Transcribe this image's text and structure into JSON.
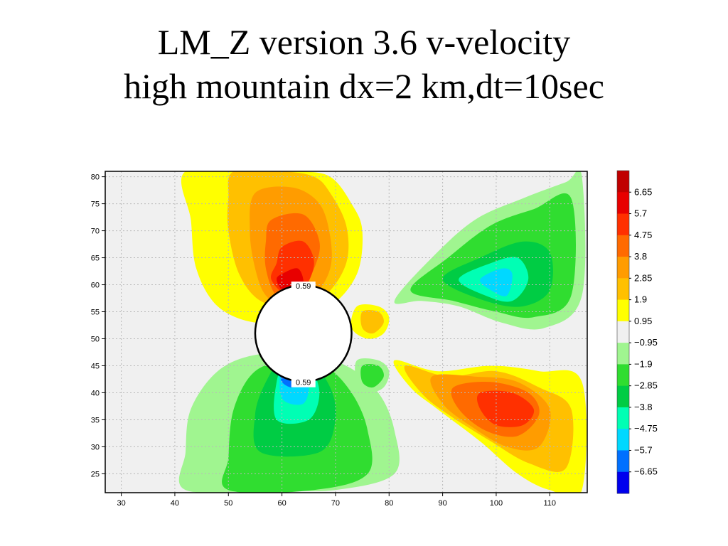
{
  "slide": {
    "title_line1": "LM_Z version 3.6 v-velocity",
    "title_line2": "high mountain dx=2 km,dt=10sec"
  },
  "chart_data": {
    "type": "heatmap",
    "title": "",
    "xlabel": "",
    "ylabel": "",
    "x_ticks": [
      30,
      40,
      50,
      60,
      70,
      80,
      90,
      100,
      110
    ],
    "xlim": [
      27,
      117
    ],
    "y_ticks": [
      25,
      30,
      35,
      40,
      45,
      50,
      55,
      60,
      65,
      70,
      75,
      80
    ],
    "y_tick_labels": [
      "25",
      "30",
      "35",
      "40",
      "45",
      "50",
      "55",
      "60",
      "65",
      "70",
      "75",
      "80"
    ],
    "ylim": [
      21.5,
      81
    ],
    "grid": true,
    "mountain": {
      "center": [
        64,
        51
      ],
      "radius_x": 9,
      "label_top": "0.59",
      "label_bottom": "0.59"
    },
    "colorbar": {
      "levels": [
        6.65,
        5.7,
        4.75,
        3.8,
        2.85,
        1.9,
        0.95,
        -0.95,
        -1.9,
        -2.85,
        -3.8,
        -4.75,
        -5.7,
        -6.65
      ],
      "level_labels": [
        "6.65",
        "5.7",
        "4.75",
        "3.8",
        "2.85",
        "1.9",
        "0.95",
        "−0.95",
        "−1.9",
        "−2.85",
        "−3.8",
        "−4.75",
        "−5.7",
        "−6.65"
      ],
      "colors": [
        "#c00000",
        "#e80000",
        "#ff3000",
        "#ff6a00",
        "#ff9c00",
        "#ffc000",
        "#ffff00",
        "#f0f0f0",
        "#a0f590",
        "#30dd30",
        "#00cc44",
        "#00ffb4",
        "#00d8ff",
        "#0070ff",
        "#0000ee"
      ]
    },
    "palette": {
      "neutral": "#f0f0f0",
      "pos": [
        "#ffff00",
        "#ffc000",
        "#ff9c00",
        "#ff6a00",
        "#ff3000",
        "#e80000"
      ],
      "neg": [
        "#a0f590",
        "#30dd30",
        "#00cc44",
        "#00ffb4",
        "#00d8ff",
        "#0070ff"
      ]
    },
    "regions": [
      {
        "name": "upper-left-positive",
        "sign": "pos",
        "levels": [
          [
            [
              42,
              81
            ],
            [
              56,
              81
            ],
            [
              63,
              81
            ],
            [
              69,
              80
            ],
            [
              73,
              75
            ],
            [
              75,
              70
            ],
            [
              74,
              62
            ],
            [
              69,
              56
            ],
            [
              62,
              54
            ],
            [
              55,
              53
            ],
            [
              48,
              56
            ],
            [
              44,
              63
            ],
            [
              43,
              72
            ]
          ],
          [
            [
              51,
              81
            ],
            [
              60,
              81
            ],
            [
              66,
              80
            ],
            [
              69,
              77
            ],
            [
              72,
              71
            ],
            [
              72,
              64
            ],
            [
              68,
              58
            ],
            [
              62,
              56
            ],
            [
              56,
              57
            ],
            [
              52,
              62
            ],
            [
              50,
              70
            ],
            [
              50,
              76
            ]
          ],
          [
            [
              55,
              77
            ],
            [
              62,
              78
            ],
            [
              67,
              75
            ],
            [
              69,
              69
            ],
            [
              69,
              63
            ],
            [
              66,
              58
            ],
            [
              61,
              56
            ],
            [
              57,
              58
            ],
            [
              55,
              63
            ],
            [
              54,
              70
            ]
          ],
          [
            [
              58,
              72
            ],
            [
              64,
              73
            ],
            [
              67,
              68
            ],
            [
              66,
              63
            ],
            [
              63,
              58
            ],
            [
              59,
              58
            ],
            [
              57,
              63
            ],
            [
              57,
              68
            ]
          ],
          [
            [
              60,
              67
            ],
            [
              64,
              68
            ],
            [
              66,
              64
            ],
            [
              64,
              59
            ],
            [
              61,
              58
            ],
            [
              58,
              61
            ],
            [
              59,
              64
            ]
          ],
          [
            [
              60,
              62
            ],
            [
              63,
              63
            ],
            [
              64,
              60
            ],
            [
              62,
              58
            ],
            [
              60,
              59
            ],
            [
              59,
              61
            ]
          ]
        ]
      },
      {
        "name": "lower-left-negative",
        "sign": "neg",
        "levels": [
          [
            [
              42,
              22
            ],
            [
              58,
              22
            ],
            [
              70,
              22
            ],
            [
              81,
              25
            ],
            [
              81,
              33
            ],
            [
              78,
              40
            ],
            [
              72,
              45
            ],
            [
              64,
              47
            ],
            [
              55,
              47
            ],
            [
              48,
              44
            ],
            [
              43,
              37
            ],
            [
              42,
              29
            ]
          ],
          [
            [
              50,
              22
            ],
            [
              66,
              22
            ],
            [
              76,
              25
            ],
            [
              76,
              33
            ],
            [
              73,
              40
            ],
            [
              68,
              45
            ],
            [
              62,
              46
            ],
            [
              55,
              44
            ],
            [
              51,
              37
            ],
            [
              50,
              28
            ]
          ],
          [
            [
              56,
              29
            ],
            [
              67,
              29
            ],
            [
              70,
              35
            ],
            [
              69,
              41
            ],
            [
              65,
              46
            ],
            [
              60,
              46
            ],
            [
              57,
              42
            ],
            [
              55,
              36
            ]
          ],
          [
            [
              59,
              35
            ],
            [
              65,
              35
            ],
            [
              67,
              40
            ],
            [
              65,
              45
            ],
            [
              61,
              46
            ],
            [
              59,
              42
            ]
          ],
          [
            [
              60,
              39
            ],
            [
              64,
              38
            ],
            [
              65,
              42
            ],
            [
              63,
              45
            ],
            [
              60,
              45
            ]
          ],
          [
            [
              60,
              42
            ],
            [
              62,
              41
            ],
            [
              63,
              43
            ],
            [
              62,
              45
            ],
            [
              60,
              44
            ]
          ]
        ]
      },
      {
        "name": "upper-right-negative",
        "sign": "neg",
        "levels": [
          [
            [
              81,
              57
            ],
            [
              88,
              65
            ],
            [
              96,
              72
            ],
            [
              105,
              76
            ],
            [
              113,
              79
            ],
            [
              116,
              80
            ],
            [
              116,
              58
            ],
            [
              109,
              52
            ],
            [
              101,
              53
            ],
            [
              93,
              56
            ],
            [
              86,
              57
            ]
          ],
          [
            [
              84,
              59
            ],
            [
              91,
              65
            ],
            [
              99,
              71
            ],
            [
              107,
              74
            ],
            [
              114,
              76
            ],
            [
              114,
              58
            ],
            [
              107,
              54
            ],
            [
              100,
              55
            ],
            [
              92,
              57
            ]
          ],
          [
            [
              90,
              61
            ],
            [
              97,
              65
            ],
            [
              105,
              68
            ],
            [
              110,
              66
            ],
            [
              110,
              59
            ],
            [
              105,
              56
            ],
            [
              98,
              57
            ]
          ],
          [
            [
              93,
              61
            ],
            [
              99,
              64
            ],
            [
              104,
              65
            ],
            [
              106,
              61
            ],
            [
              103,
              57
            ],
            [
              98,
              58
            ]
          ],
          [
            [
              97,
              61
            ],
            [
              101,
              63
            ],
            [
              103,
              62
            ],
            [
              102,
              58
            ],
            [
              99,
              59
            ]
          ]
        ]
      },
      {
        "name": "lower-right-positive",
        "sign": "pos",
        "levels": [
          [
            [
              81,
              46
            ],
            [
              89,
              44
            ],
            [
              99,
              45
            ],
            [
              108,
              44
            ],
            [
              116,
              42
            ],
            [
              116,
              22
            ],
            [
              110,
              22
            ],
            [
              104,
              25
            ],
            [
              97,
              31
            ],
            [
              89,
              37
            ],
            [
              84,
              41
            ]
          ],
          [
            [
              83,
              45
            ],
            [
              91,
              43
            ],
            [
              100,
              44
            ],
            [
              108,
              41
            ],
            [
              114,
              37
            ],
            [
              113,
              26
            ],
            [
              106,
              27
            ],
            [
              99,
              31
            ],
            [
              91,
              36
            ],
            [
              86,
              40
            ]
          ],
          [
            [
              88,
              43
            ],
            [
              96,
              43
            ],
            [
              104,
              42
            ],
            [
              110,
              37
            ],
            [
              108,
              30
            ],
            [
              102,
              30
            ],
            [
              95,
              34
            ],
            [
              90,
              38
            ]
          ],
          [
            [
              92,
              41
            ],
            [
              99,
              42
            ],
            [
              106,
              40
            ],
            [
              108,
              36
            ],
            [
              104,
              32
            ],
            [
              98,
              33
            ],
            [
              93,
              37
            ]
          ],
          [
            [
              97,
              40
            ],
            [
              103,
              40
            ],
            [
              107,
              37
            ],
            [
              105,
              34
            ],
            [
              100,
              34
            ],
            [
              97,
              37
            ]
          ]
        ]
      },
      {
        "name": "small-upper-positive",
        "sign": "pos",
        "levels": [
          [
            [
              74,
              56
            ],
            [
              78,
              56
            ],
            [
              80,
              54
            ],
            [
              79,
              51
            ],
            [
              76,
              50
            ],
            [
              73,
              52
            ]
          ],
          [
            [
              75,
              55
            ],
            [
              78,
              55
            ],
            [
              79,
              53
            ],
            [
              77,
              51
            ],
            [
              75,
              52
            ]
          ]
        ]
      },
      {
        "name": "small-lower-negative",
        "sign": "neg",
        "levels": [
          [
            [
              74,
              46
            ],
            [
              78,
              46
            ],
            [
              80,
              44
            ],
            [
              79,
              41
            ],
            [
              76,
              40
            ],
            [
              74,
              42
            ]
          ],
          [
            [
              75,
              45
            ],
            [
              78,
              45
            ],
            [
              79,
              43
            ],
            [
              77,
              41
            ],
            [
              75,
              42
            ]
          ]
        ]
      }
    ]
  }
}
